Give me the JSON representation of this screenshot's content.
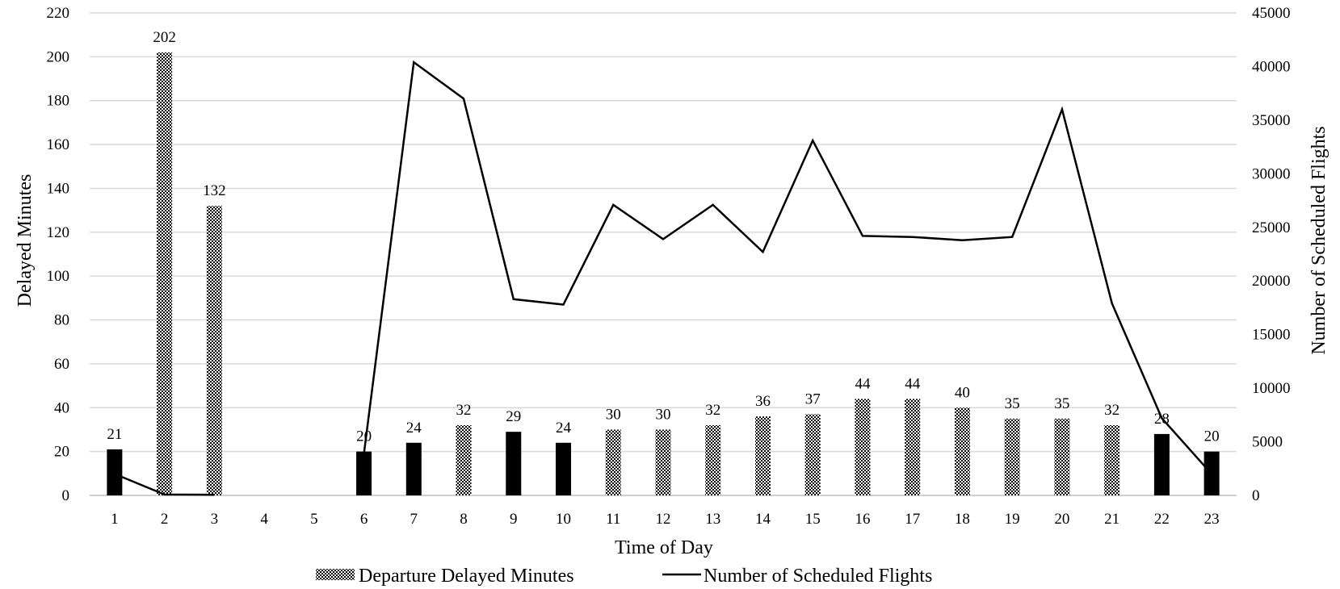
{
  "chart_data": {
    "type": "bar",
    "xlabel": "Time of Day",
    "ylabel_left": "Delayed Minutes",
    "ylabel_right": "Number of Scheduled Flights",
    "categories": [
      "1",
      "2",
      "3",
      "4",
      "5",
      "6",
      "7",
      "8",
      "9",
      "10",
      "11",
      "12",
      "13",
      "14",
      "15",
      "16",
      "17",
      "18",
      "19",
      "20",
      "21",
      "22",
      "23"
    ],
    "ylim_left": [
      0,
      220
    ],
    "ylim_right": [
      0,
      45000
    ],
    "yticks_left": [
      "0",
      "20",
      "40",
      "60",
      "80",
      "100",
      "120",
      "140",
      "160",
      "180",
      "200",
      "220"
    ],
    "yticks_right": [
      "0",
      "5000",
      "10000",
      "15000",
      "20000",
      "25000",
      "30000",
      "35000",
      "40000",
      "45000"
    ],
    "grid": true,
    "legend_position": "bottom",
    "series": [
      {
        "name": "Departure Delayed Minutes",
        "kind": "bar",
        "axis": "left",
        "values": [
          21,
          202,
          132,
          null,
          null,
          20,
          24,
          32,
          29,
          24,
          30,
          30,
          32,
          36,
          37,
          44,
          44,
          40,
          35,
          35,
          32,
          28,
          20
        ],
        "labels": [
          "21",
          "202",
          "132",
          "",
          "",
          "20",
          "24",
          "32",
          "29",
          "24",
          "30",
          "30",
          "32",
          "36",
          "37",
          "44",
          "44",
          "40",
          "35",
          "35",
          "32",
          "28",
          "20"
        ],
        "fill": [
          "solid",
          "pattern",
          "pattern",
          null,
          null,
          "solid",
          "solid",
          "pattern",
          "solid",
          "solid",
          "pattern",
          "pattern",
          "pattern",
          "pattern",
          "pattern",
          "pattern",
          "pattern",
          "pattern",
          "pattern",
          "pattern",
          "pattern",
          "solid",
          "solid"
        ]
      },
      {
        "name": "Number of Scheduled Flights",
        "kind": "line",
        "axis": "right",
        "values": [
          2000,
          80,
          60,
          null,
          null,
          3900,
          40400,
          37000,
          18300,
          17800,
          27100,
          23900,
          27100,
          22700,
          33100,
          24200,
          24100,
          23800,
          24100,
          36000,
          17900,
          7200,
          2000
        ]
      }
    ],
    "colors": {
      "bar_solid": "#000000",
      "line": "#000000",
      "grid": "#d9d9d9"
    }
  }
}
